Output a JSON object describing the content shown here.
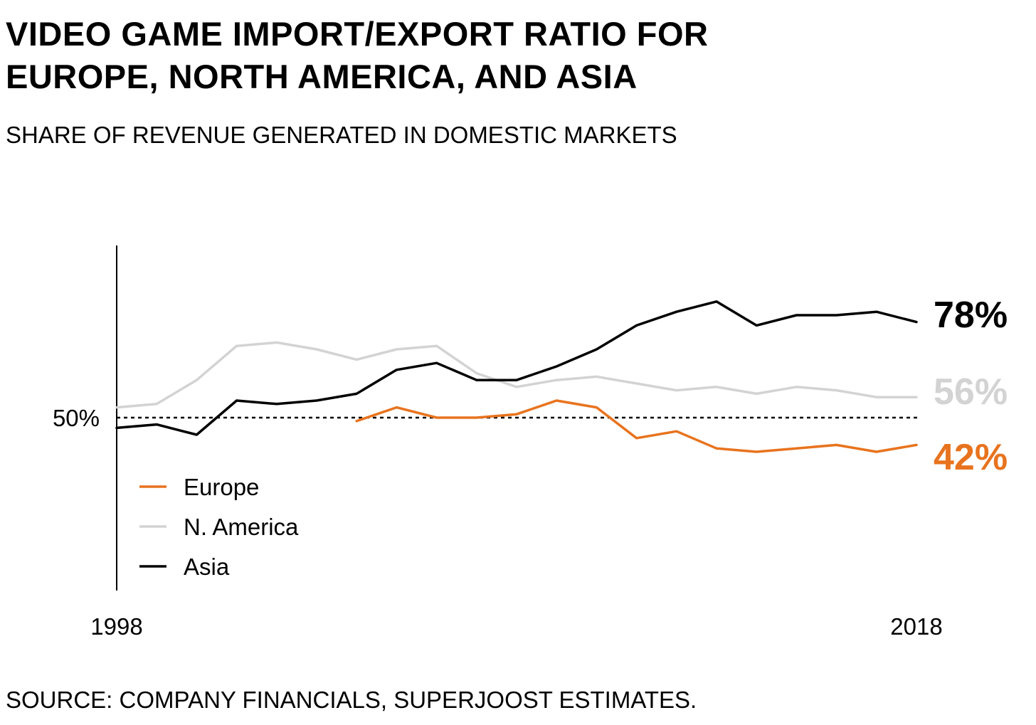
{
  "header": {
    "title_line1": "VIDEO GAME IMPORT/EXPORT RATIO FOR",
    "title_line2": "EUROPE, NORTH AMERICA, AND ASIA",
    "subtitle": "SHARE OF REVENUE GENERATED IN DOMESTIC MARKETS"
  },
  "footer": {
    "source": "SOURCE: COMPANY FINANCIALS, SUPERJOOST ESTIMATES."
  },
  "chart_data": {
    "type": "line",
    "title": "VIDEO GAME IMPORT/EXPORT RATIO FOR EUROPE, NORTH AMERICA, AND ASIA",
    "subtitle": "SHARE OF REVENUE GENERATED IN DOMESTIC MARKETS",
    "xlabel": "",
    "ylabel": "",
    "x": [
      1998,
      1999,
      2000,
      2001,
      2002,
      2003,
      2004,
      2005,
      2006,
      2007,
      2008,
      2009,
      2010,
      2011,
      2012,
      2013,
      2014,
      2015,
      2016,
      2017,
      2018
    ],
    "x_tick_labels": [
      "1998",
      "2018"
    ],
    "ylim": [
      0,
      100
    ],
    "y_reference": {
      "value": 50,
      "label": "50%",
      "style": "dotted"
    },
    "grid": false,
    "legend_placement": "bottom-left",
    "series": [
      {
        "name": "Europe",
        "color": "#e8731e",
        "values": [
          null,
          null,
          null,
          null,
          null,
          null,
          49,
          53,
          50,
          50,
          51,
          55,
          53,
          44,
          46,
          41,
          40,
          41,
          42,
          40,
          42
        ],
        "end_label": "42%"
      },
      {
        "name": "N. America",
        "color": "#d3d3d3",
        "values": [
          53,
          54,
          61,
          71,
          72,
          70,
          67,
          70,
          71,
          63,
          59,
          61,
          62,
          60,
          58,
          59,
          57,
          59,
          58,
          56,
          56
        ],
        "end_label": "56%"
      },
      {
        "name": "Asia",
        "color": "#000000",
        "values": [
          47,
          48,
          45,
          55,
          54,
          55,
          57,
          64,
          66,
          61,
          61,
          65,
          70,
          77,
          81,
          84,
          77,
          80,
          80,
          81,
          78
        ],
        "end_label": "78%"
      }
    ]
  }
}
